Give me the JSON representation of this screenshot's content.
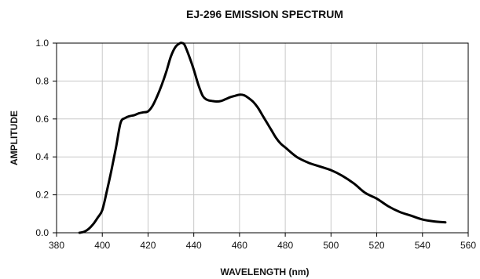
{
  "chart_data": {
    "type": "line",
    "title": "EJ-296 EMISSION SPECTRUM",
    "xlabel": "WAVELENGTH (nm)",
    "ylabel": "AMPLITUDE",
    "xlim": [
      380,
      560
    ],
    "ylim": [
      0,
      1.0
    ],
    "x_ticks": [
      380,
      400,
      420,
      440,
      460,
      480,
      500,
      520,
      540,
      560
    ],
    "x_tick_labels": [
      "380",
      "400",
      "420",
      "440",
      "460",
      "480",
      "500",
      "520",
      "540",
      "560"
    ],
    "y_ticks": [
      0,
      0.2,
      0.4,
      0.6,
      0.8,
      1.0
    ],
    "y_tick_labels": [
      "0.0",
      "0.2",
      "0.4",
      "0.6",
      "0.8",
      "1.0"
    ],
    "grid": true,
    "series": [
      {
        "color": "#000000",
        "x": [
          390,
          392,
          394,
          396,
          398,
          400,
          402,
          404,
          406,
          408,
          410,
          412,
          414,
          416,
          418,
          420,
          422,
          424,
          426,
          428,
          430,
          432,
          434,
          435,
          436,
          438,
          440,
          442,
          444,
          446,
          448,
          450,
          452,
          454,
          456,
          458,
          460,
          462,
          464,
          466,
          468,
          470,
          472,
          474,
          476,
          478,
          480,
          485,
          490,
          495,
          500,
          505,
          510,
          515,
          520,
          525,
          530,
          535,
          540,
          545,
          550
        ],
        "y": [
          0.0,
          0.005,
          0.02,
          0.045,
          0.08,
          0.12,
          0.22,
          0.33,
          0.45,
          0.58,
          0.605,
          0.615,
          0.62,
          0.63,
          0.635,
          0.64,
          0.67,
          0.72,
          0.78,
          0.85,
          0.93,
          0.98,
          1.0,
          1.0,
          0.99,
          0.93,
          0.86,
          0.78,
          0.72,
          0.7,
          0.695,
          0.692,
          0.695,
          0.705,
          0.715,
          0.722,
          0.728,
          0.725,
          0.71,
          0.69,
          0.66,
          0.62,
          0.58,
          0.54,
          0.5,
          0.47,
          0.45,
          0.4,
          0.37,
          0.35,
          0.33,
          0.3,
          0.26,
          0.21,
          0.18,
          0.14,
          0.11,
          0.09,
          0.07,
          0.06,
          0.055
        ]
      }
    ]
  }
}
